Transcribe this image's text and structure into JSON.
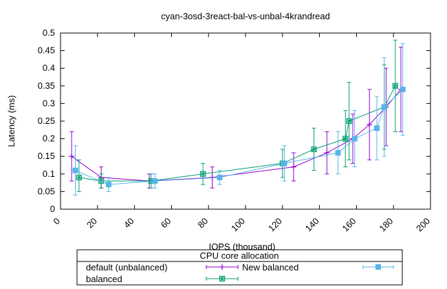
{
  "chart_data": {
    "type": "line",
    "title": "cyan-3osd-3react-bal-vs-unbal-4krandread",
    "xlabel": "IOPS (thousand)",
    "ylabel": "Latency (ms)",
    "xlim": [
      0,
      200
    ],
    "ylim": [
      0,
      0.5
    ],
    "xticks": [
      0,
      20,
      40,
      60,
      80,
      100,
      120,
      140,
      160,
      180,
      200
    ],
    "yticks": [
      0,
      0.05,
      0.1,
      0.15,
      0.2,
      0.25,
      0.3,
      0.35,
      0.4,
      0.45,
      0.5
    ],
    "ytick_labels": [
      "0",
      "0.05",
      "0.1",
      "0.15",
      "0.2",
      "0.25",
      "0.3",
      "0.35",
      "0.4",
      "0.45",
      "0.5"
    ],
    "grid": false,
    "legend": {
      "title": "CPU core allocation",
      "placement": "bottom"
    },
    "series": [
      {
        "name": "default (unbalanced)",
        "color": "#9400d3",
        "marker": "plus",
        "points": [
          {
            "x": 6,
            "y": 0.15,
            "ylow": 0.08,
            "yhigh": 0.22
          },
          {
            "x": 22,
            "y": 0.09,
            "ylow": 0.06,
            "yhigh": 0.12
          },
          {
            "x": 48,
            "y": 0.08,
            "ylow": 0.06,
            "yhigh": 0.1
          },
          {
            "x": 82,
            "y": 0.09,
            "ylow": 0.06,
            "yhigh": 0.12
          },
          {
            "x": 126,
            "y": 0.12,
            "ylow": 0.08,
            "yhigh": 0.16
          },
          {
            "x": 144,
            "y": 0.16,
            "ylow": 0.1,
            "yhigh": 0.22
          },
          {
            "x": 158,
            "y": 0.2,
            "ylow": 0.13,
            "yhigh": 0.27
          },
          {
            "x": 167,
            "y": 0.24,
            "ylow": 0.14,
            "yhigh": 0.34
          },
          {
            "x": 176,
            "y": 0.29,
            "ylow": 0.18,
            "yhigh": 0.4
          },
          {
            "x": 184,
            "y": 0.34,
            "ylow": 0.22,
            "yhigh": 0.46
          }
        ]
      },
      {
        "name": "balanced",
        "color": "#009e73",
        "marker": "boxed-star",
        "points": [
          {
            "x": 10,
            "y": 0.09,
            "ylow": 0.05,
            "yhigh": 0.14
          },
          {
            "x": 22,
            "y": 0.08,
            "ylow": 0.06,
            "yhigh": 0.1
          },
          {
            "x": 49,
            "y": 0.08,
            "ylow": 0.06,
            "yhigh": 0.1
          },
          {
            "x": 77,
            "y": 0.1,
            "ylow": 0.07,
            "yhigh": 0.13
          },
          {
            "x": 120,
            "y": 0.13,
            "ylow": 0.09,
            "yhigh": 0.17
          },
          {
            "x": 137,
            "y": 0.17,
            "ylow": 0.11,
            "yhigh": 0.23
          },
          {
            "x": 154,
            "y": 0.2,
            "ylow": 0.12,
            "yhigh": 0.28
          },
          {
            "x": 156,
            "y": 0.25,
            "ylow": 0.14,
            "yhigh": 0.36
          },
          {
            "x": 175,
            "y": 0.29,
            "ylow": 0.17,
            "yhigh": 0.41
          },
          {
            "x": 181,
            "y": 0.35,
            "ylow": 0.22,
            "yhigh": 0.48
          }
        ]
      },
      {
        "name": "New balanced",
        "color": "#56b4e9",
        "marker": "square",
        "points": [
          {
            "x": 8,
            "y": 0.11,
            "ylow": 0.04,
            "yhigh": 0.18
          },
          {
            "x": 26,
            "y": 0.07,
            "ylow": 0.05,
            "yhigh": 0.09
          },
          {
            "x": 51,
            "y": 0.08,
            "ylow": 0.06,
            "yhigh": 0.1
          },
          {
            "x": 86,
            "y": 0.09,
            "ylow": 0.07,
            "yhigh": 0.11
          },
          {
            "x": 121,
            "y": 0.13,
            "ylow": 0.08,
            "yhigh": 0.18
          },
          {
            "x": 150,
            "y": 0.16,
            "ylow": 0.1,
            "yhigh": 0.22
          },
          {
            "x": 159,
            "y": 0.2,
            "ylow": 0.12,
            "yhigh": 0.28
          },
          {
            "x": 171,
            "y": 0.23,
            "ylow": 0.14,
            "yhigh": 0.32
          },
          {
            "x": 175,
            "y": 0.29,
            "ylow": 0.15,
            "yhigh": 0.43
          },
          {
            "x": 185,
            "y": 0.34,
            "ylow": 0.21,
            "yhigh": 0.47
          }
        ]
      }
    ]
  }
}
